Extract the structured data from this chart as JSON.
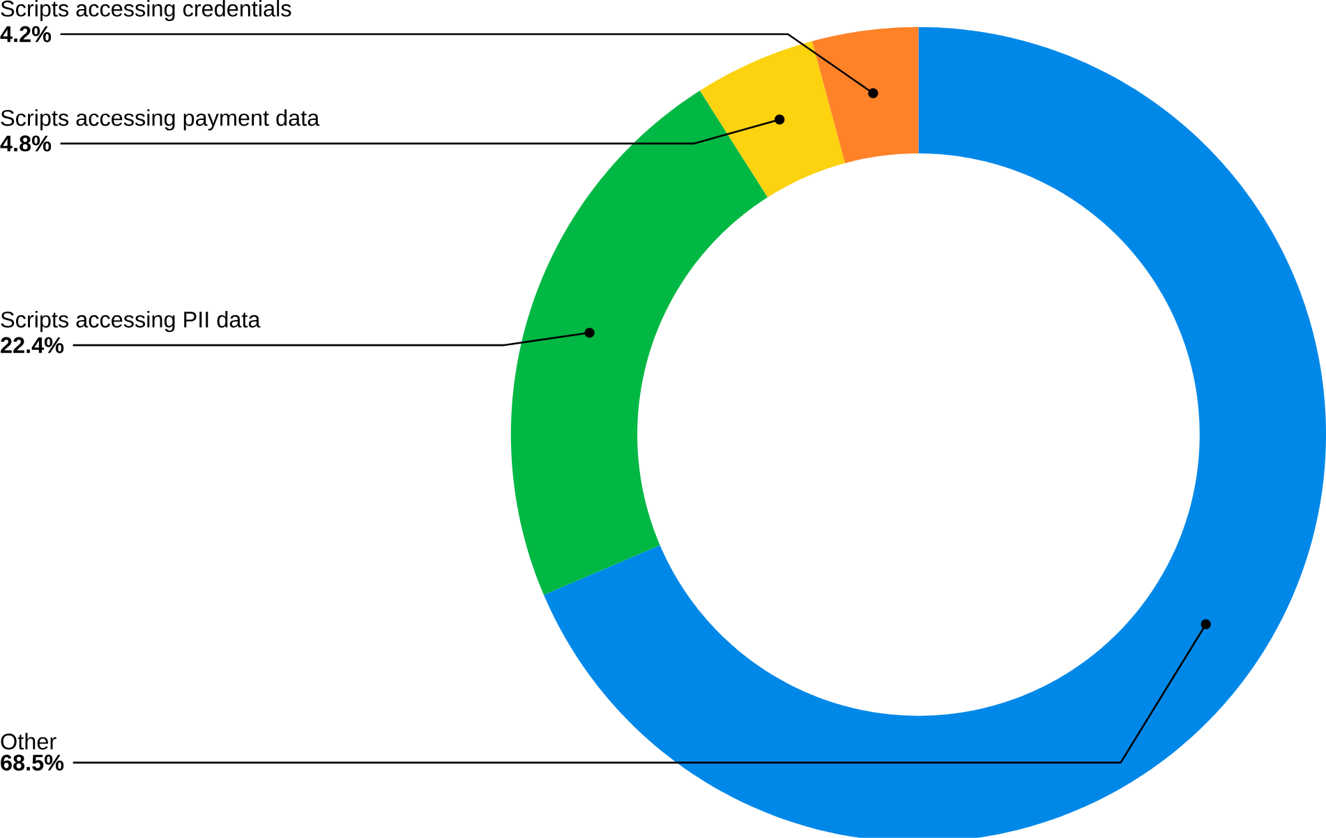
{
  "chart_data": {
    "type": "donut",
    "categories": [
      "Other",
      "Scripts accessing PII data",
      "Scripts accessing payment data",
      "Scripts accessing credentials"
    ],
    "values": [
      68.5,
      22.4,
      4.8,
      4.2
    ],
    "colors": [
      "#0088e8",
      "#00b843",
      "#fdd20e",
      "#ff8128"
    ],
    "value_labels": [
      "68.5%",
      "22.4%",
      "4.8%",
      "4.2%"
    ]
  }
}
